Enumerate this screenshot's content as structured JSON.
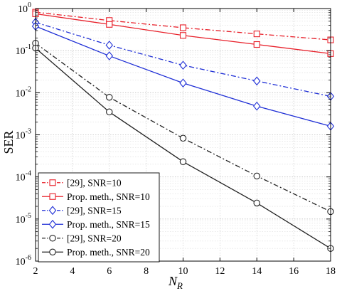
{
  "chart_data": {
    "type": "line",
    "xlabel": "N",
    "xlabel_sub": "R",
    "ylabel": "SER",
    "y_scale": "log",
    "xlim": [
      2,
      18
    ],
    "ylim": [
      1e-06,
      1
    ],
    "xticks": [
      2,
      4,
      6,
      8,
      10,
      12,
      14,
      16,
      18
    ],
    "yticks": [
      {
        "value": 1,
        "mant": "10",
        "exp": "0"
      },
      {
        "value": 0.1,
        "mant": "10",
        "exp": "-1"
      },
      {
        "value": 0.01,
        "mant": "10",
        "exp": "-2"
      },
      {
        "value": 0.001,
        "mant": "10",
        "exp": "-3"
      },
      {
        "value": 0.0001,
        "mant": "10",
        "exp": "-4"
      },
      {
        "value": 1e-05,
        "mant": "10",
        "exp": "-5"
      },
      {
        "value": 1e-06,
        "mant": "10",
        "exp": "-6"
      }
    ],
    "grid": true,
    "legend_position": "lower-left",
    "x": [
      2,
      6,
      10,
      14,
      18
    ],
    "series": [
      {
        "name": "[29], SNR=10",
        "color": "#e8202a",
        "dash": "dashdot",
        "marker": "square",
        "values": [
          0.82,
          0.52,
          0.35,
          0.25,
          0.18
        ]
      },
      {
        "name": "Prop. meth., SNR=10",
        "color": "#e8202a",
        "dash": "solid",
        "marker": "square",
        "values": [
          0.75,
          0.42,
          0.23,
          0.14,
          0.085
        ]
      },
      {
        "name": "[29], SNR=15",
        "color": "#1f2fd6",
        "dash": "dashdot",
        "marker": "diamond",
        "values": [
          0.47,
          0.135,
          0.045,
          0.019,
          0.0082
        ]
      },
      {
        "name": "Prop. meth., SNR=15",
        "color": "#1f2fd6",
        "dash": "solid",
        "marker": "diamond",
        "values": [
          0.38,
          0.075,
          0.017,
          0.0048,
          0.0016
        ]
      },
      {
        "name": "[29], SNR=20",
        "color": "#222222",
        "dash": "dashdot",
        "marker": "circle",
        "values": [
          0.15,
          0.0078,
          0.00083,
          0.000105,
          1.5e-05
        ]
      },
      {
        "name": "Prop. meth., SNR=20",
        "color": "#222222",
        "dash": "solid",
        "marker": "circle",
        "values": [
          0.115,
          0.0035,
          0.00023,
          2.4e-05,
          2e-06
        ]
      }
    ]
  }
}
